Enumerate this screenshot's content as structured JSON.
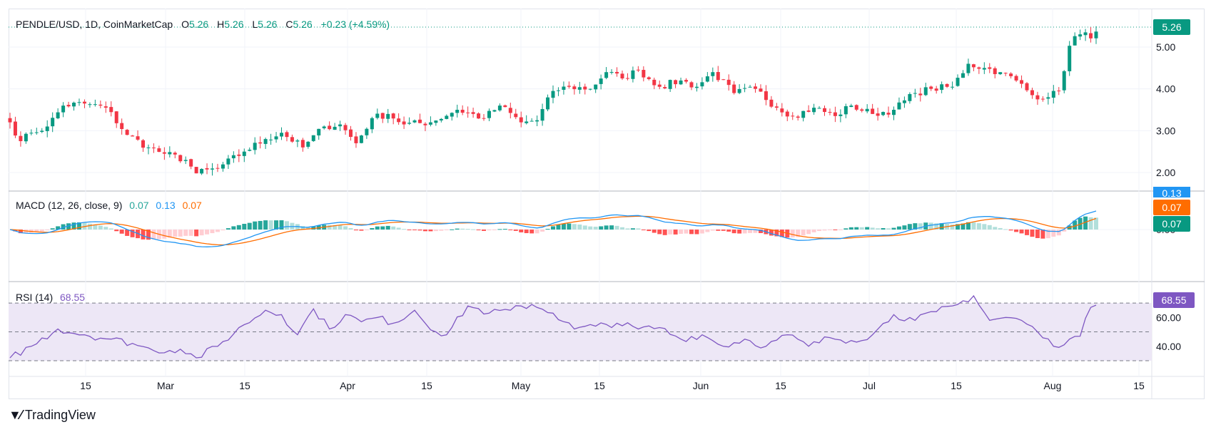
{
  "header": {
    "symbol": "PENDLE/USD, 1D, CoinMarketCap",
    "o_label": "O",
    "o_value": "5.26",
    "h_label": "H",
    "h_value": "5.26",
    "l_label": "L",
    "l_value": "5.26",
    "c_label": "C",
    "c_value": "5.26",
    "change": "+0.23 (+4.59%)"
  },
  "footer": {
    "brand": "TradingView"
  },
  "colors": {
    "up": "#089981",
    "down": "#f23645",
    "macd_line": "#2196f3",
    "signal_line": "#ff6d00",
    "hist_up_strong": "#26a69a",
    "hist_up_weak": "#b2dfdb",
    "hist_down_strong": "#ff5252",
    "hist_down_weak": "#ffcdd2",
    "rsi_line": "#7e57c2",
    "rsi_band": "#ede7f6"
  },
  "chart_data": [
    {
      "type": "candlestick",
      "title": "PENDLE/USD, 1D, CoinMarketCap",
      "ylim": [
        1.6,
        5.3
      ],
      "y_ticks": [
        "2.00",
        "3.00",
        "4.00",
        "5.00"
      ],
      "last_price": "5.26",
      "x_ticks": [
        "15",
        "Mar",
        "15",
        "Apr",
        "15",
        "May",
        "15",
        "Jun",
        "15",
        "Jul",
        "15",
        "Aug",
        "15"
      ],
      "anchors": [
        {
          "date": "Feb 04",
          "close": 3.2
        },
        {
          "date": "Feb 06",
          "close": 2.75
        },
        {
          "date": "Feb 08",
          "close": 2.95
        },
        {
          "date": "Feb 11",
          "close": 3.1
        },
        {
          "date": "Feb 14",
          "close": 3.6
        },
        {
          "date": "Feb 18",
          "close": 3.65
        },
        {
          "date": "Feb 22",
          "close": 3.55
        },
        {
          "date": "Feb 26",
          "close": 2.9
        },
        {
          "date": "Mar 02",
          "close": 2.6
        },
        {
          "date": "Mar 05",
          "close": 2.45
        },
        {
          "date": "Mar 09",
          "close": 2.3
        },
        {
          "date": "Mar 11",
          "close": 1.98
        },
        {
          "date": "Mar 15",
          "close": 2.1
        },
        {
          "date": "Mar 20",
          "close": 2.5
        },
        {
          "date": "Mar 24",
          "close": 2.8
        },
        {
          "date": "Mar 27",
          "close": 2.95
        },
        {
          "date": "Mar 31",
          "close": 2.6
        },
        {
          "date": "Apr 04",
          "close": 3.1
        },
        {
          "date": "Apr 07",
          "close": 3.15
        },
        {
          "date": "Apr 10",
          "close": 2.7
        },
        {
          "date": "Apr 13",
          "close": 3.3
        },
        {
          "date": "Apr 16",
          "close": 3.4
        },
        {
          "date": "Apr 19",
          "close": 3.15
        },
        {
          "date": "Apr 24",
          "close": 3.2
        },
        {
          "date": "Apr 29",
          "close": 3.5
        },
        {
          "date": "May 04",
          "close": 3.3
        },
        {
          "date": "May 07",
          "close": 3.6
        },
        {
          "date": "May 11",
          "close": 3.2
        },
        {
          "date": "May 14",
          "close": 3.25
        },
        {
          "date": "May 17",
          "close": 3.95
        },
        {
          "date": "May 20",
          "close": 4.05
        },
        {
          "date": "May 24",
          "close": 4.0
        },
        {
          "date": "May 27",
          "close": 4.4
        },
        {
          "date": "May 30",
          "close": 4.25
        },
        {
          "date": "Jun 02",
          "close": 4.45
        },
        {
          "date": "Jun 06",
          "close": 4.05
        },
        {
          "date": "Jun 10",
          "close": 4.2
        },
        {
          "date": "Jun 13",
          "close": 4.05
        },
        {
          "date": "Jun 16",
          "close": 4.4
        },
        {
          "date": "Jun 20",
          "close": 3.9
        },
        {
          "date": "Jun 24",
          "close": 4.0
        },
        {
          "date": "Jun 28",
          "close": 3.55
        },
        {
          "date": "Jul 01",
          "close": 3.35
        },
        {
          "date": "Jul 05",
          "close": 3.55
        },
        {
          "date": "Jul 09",
          "close": 3.35
        },
        {
          "date": "Jul 12",
          "close": 3.6
        },
        {
          "date": "Jul 16",
          "close": 3.4
        },
        {
          "date": "Jul 20",
          "close": 3.5
        },
        {
          "date": "Jul 24",
          "close": 3.9
        },
        {
          "date": "Jul 27",
          "close": 4.0
        },
        {
          "date": "Jul 31",
          "close": 4.05
        },
        {
          "date": "Aug 03",
          "close": 4.6
        },
        {
          "date": "Aug 06",
          "close": 4.5
        },
        {
          "date": "Aug 09",
          "close": 4.4
        },
        {
          "date": "Aug 12",
          "close": 4.2
        },
        {
          "date": "Aug 15",
          "close": 3.85
        },
        {
          "date": "Aug 18",
          "close": 3.8
        },
        {
          "date": "Aug 20",
          "close": 3.95
        },
        {
          "date": "Aug 22",
          "close": 5.03
        },
        {
          "date": "Aug 23",
          "close": 5.26
        }
      ]
    },
    {
      "type": "line",
      "name": "MACD (12, 26, close, 9)",
      "values_shown": {
        "histogram": "0.07",
        "macd": "0.13",
        "signal": "0.07"
      },
      "series": [
        {
          "name": "MACD",
          "color": "#2196f3"
        },
        {
          "name": "Signal",
          "color": "#ff6d00"
        },
        {
          "name": "Histogram",
          "type": "bar"
        }
      ],
      "y_ticks": [
        "0.00"
      ]
    },
    {
      "type": "line",
      "name": "RSI (14)",
      "value_shown": "68.55",
      "ylim": [
        25,
        78
      ],
      "y_ticks": [
        "40.00",
        "60.00"
      ],
      "bands": [
        30,
        50,
        70
      ],
      "anchors": [
        {
          "i": 0,
          "v": 32
        },
        {
          "i": 4,
          "v": 40
        },
        {
          "i": 9,
          "v": 52
        },
        {
          "i": 14,
          "v": 48
        },
        {
          "i": 19,
          "v": 45
        },
        {
          "i": 23,
          "v": 42
        },
        {
          "i": 27,
          "v": 37
        },
        {
          "i": 32,
          "v": 38
        },
        {
          "i": 35,
          "v": 32
        },
        {
          "i": 39,
          "v": 40
        },
        {
          "i": 44,
          "v": 55
        },
        {
          "i": 48,
          "v": 65
        },
        {
          "i": 51,
          "v": 62
        },
        {
          "i": 54,
          "v": 48
        },
        {
          "i": 57,
          "v": 66
        },
        {
          "i": 60,
          "v": 52
        },
        {
          "i": 63,
          "v": 62
        },
        {
          "i": 66,
          "v": 57
        },
        {
          "i": 69,
          "v": 60
        },
        {
          "i": 72,
          "v": 56
        },
        {
          "i": 76,
          "v": 65
        },
        {
          "i": 80,
          "v": 50
        },
        {
          "i": 82,
          "v": 48
        },
        {
          "i": 86,
          "v": 68
        },
        {
          "i": 90,
          "v": 63
        },
        {
          "i": 94,
          "v": 65
        },
        {
          "i": 98,
          "v": 69
        },
        {
          "i": 102,
          "v": 63
        },
        {
          "i": 106,
          "v": 52
        },
        {
          "i": 110,
          "v": 54
        },
        {
          "i": 114,
          "v": 56
        },
        {
          "i": 118,
          "v": 52
        },
        {
          "i": 122,
          "v": 53
        },
        {
          "i": 126,
          "v": 45
        },
        {
          "i": 130,
          "v": 48
        },
        {
          "i": 134,
          "v": 40
        },
        {
          "i": 138,
          "v": 45
        },
        {
          "i": 142,
          "v": 40
        },
        {
          "i": 146,
          "v": 48
        },
        {
          "i": 150,
          "v": 40
        },
        {
          "i": 154,
          "v": 46
        },
        {
          "i": 158,
          "v": 44
        },
        {
          "i": 162,
          "v": 48
        },
        {
          "i": 166,
          "v": 62
        },
        {
          "i": 170,
          "v": 58
        },
        {
          "i": 174,
          "v": 64
        },
        {
          "i": 178,
          "v": 69
        },
        {
          "i": 181,
          "v": 75
        },
        {
          "i": 184,
          "v": 58
        },
        {
          "i": 187,
          "v": 60
        },
        {
          "i": 190,
          "v": 58
        },
        {
          "i": 193,
          "v": 50
        },
        {
          "i": 196,
          "v": 40
        },
        {
          "i": 199,
          "v": 45
        },
        {
          "i": 201,
          "v": 47
        },
        {
          "i": 203,
          "v": 67
        },
        {
          "i": 204,
          "v": 68.55
        }
      ]
    }
  ]
}
